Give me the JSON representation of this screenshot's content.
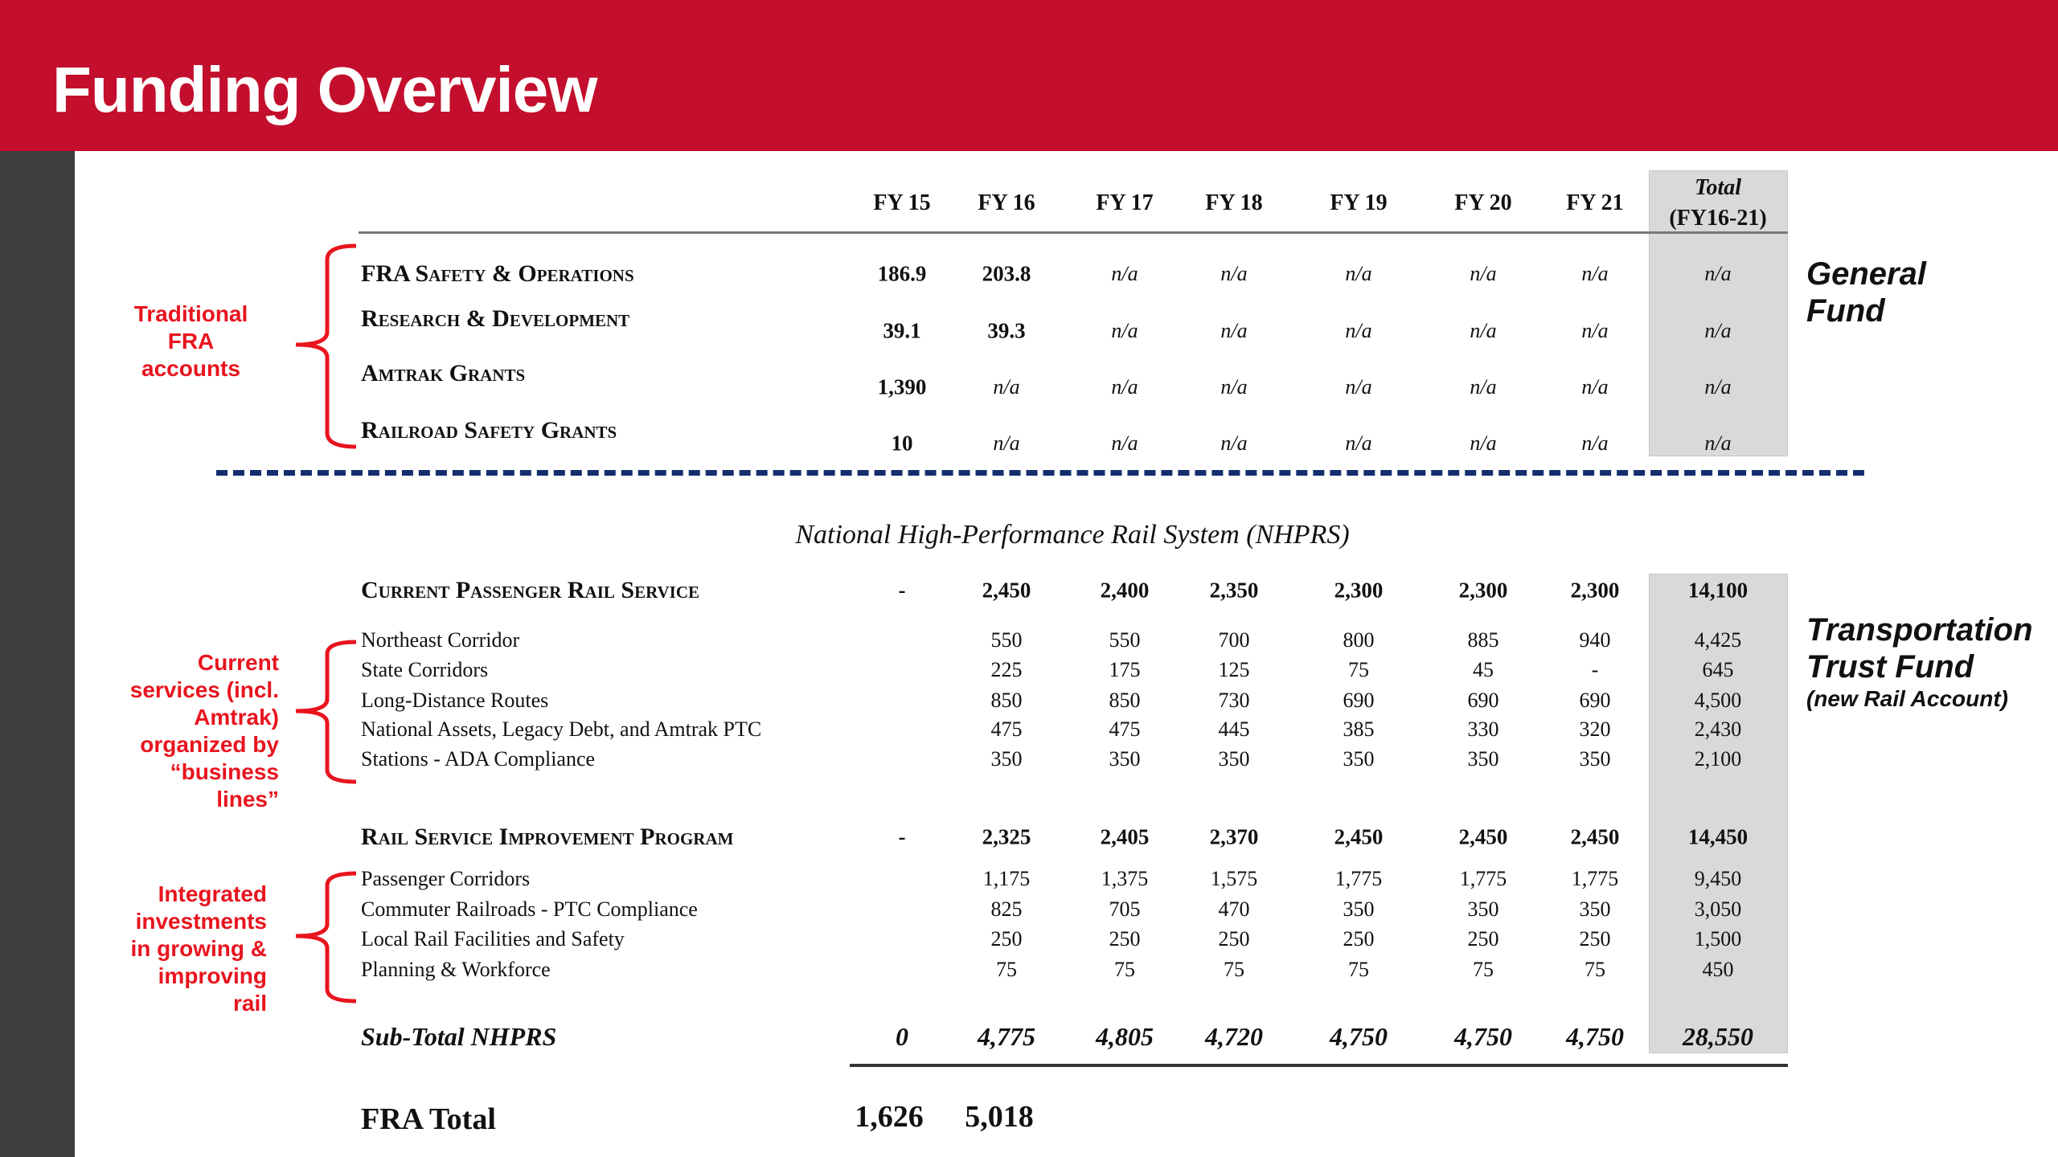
{
  "header": {
    "title": "Funding Overview",
    "background_color": "#c30f2d"
  },
  "columns": [
    "FY 15",
    "FY 16",
    "FY 17",
    "FY 18",
    "FY 19",
    "FY 20",
    "FY 21"
  ],
  "total_header": [
    "Total",
    "(FY16-21)"
  ],
  "general_fund": {
    "side_label": [
      "General",
      "Fund"
    ],
    "annotation": [
      "Traditional",
      "FRA",
      "accounts"
    ],
    "rows": [
      {
        "label": "FRA Safety & Operations",
        "values": [
          "186.9",
          "203.8",
          "n/a",
          "n/a",
          "n/a",
          "n/a",
          "n/a"
        ],
        "total": "n/a"
      },
      {
        "label": "Research & Development",
        "values": [
          "39.1",
          "39.3",
          "n/a",
          "n/a",
          "n/a",
          "n/a",
          "n/a"
        ],
        "total": "n/a"
      },
      {
        "label": "Amtrak Grants",
        "values": [
          "1,390",
          "n/a",
          "n/a",
          "n/a",
          "n/a",
          "n/a",
          "n/a"
        ],
        "total": "n/a"
      },
      {
        "label": "Railroad Safety Grants",
        "values": [
          "10",
          "n/a",
          "n/a",
          "n/a",
          "n/a",
          "n/a",
          "n/a"
        ],
        "total": "n/a"
      }
    ]
  },
  "nhprs": {
    "title": "National High-Performance Rail System (NHPRS)",
    "side_label": [
      "Transportation",
      "Trust Fund"
    ],
    "side_sublabel": "(new Rail Account)",
    "groups": [
      {
        "annotation": [
          "Current",
          "services (incl.",
          "Amtrak)",
          "organized by",
          "“business",
          "lines”"
        ],
        "header": {
          "label": "Current Passenger Rail Service",
          "values": [
            "-",
            "2,450",
            "2,400",
            "2,350",
            "2,300",
            "2,300",
            "2,300"
          ],
          "total": "14,100"
        },
        "items": [
          {
            "label": "Northeast Corridor",
            "values": [
              "",
              "550",
              "550",
              "700",
              "800",
              "885",
              "940"
            ],
            "total": "4,425"
          },
          {
            "label": "State Corridors",
            "values": [
              "",
              "225",
              "175",
              "125",
              "75",
              "45",
              "-"
            ],
            "total": "645"
          },
          {
            "label": "Long-Distance Routes",
            "values": [
              "",
              "850",
              "850",
              "730",
              "690",
              "690",
              "690"
            ],
            "total": "4,500"
          },
          {
            "label": "National Assets, Legacy Debt, and Amtrak PTC",
            "values": [
              "",
              "475",
              "475",
              "445",
              "385",
              "330",
              "320"
            ],
            "total": "2,430"
          },
          {
            "label": "Stations - ADA Compliance",
            "values": [
              "",
              "350",
              "350",
              "350",
              "350",
              "350",
              "350"
            ],
            "total": "2,100"
          }
        ]
      },
      {
        "annotation": [
          "Integrated",
          "investments",
          "in growing &",
          "improving",
          "rail"
        ],
        "header": {
          "label": "Rail Service Improvement Program",
          "values": [
            "-",
            "2,325",
            "2,405",
            "2,370",
            "2,450",
            "2,450",
            "2,450"
          ],
          "total": "14,450"
        },
        "items": [
          {
            "label": "Passenger Corridors",
            "values": [
              "",
              "1,175",
              "1,375",
              "1,575",
              "1,775",
              "1,775",
              "1,775"
            ],
            "total": "9,450"
          },
          {
            "label": "Commuter Railroads - PTC Compliance",
            "values": [
              "",
              "825",
              "705",
              "470",
              "350",
              "350",
              "350"
            ],
            "total": "3,050"
          },
          {
            "label": "Local Rail Facilities and Safety",
            "values": [
              "",
              "250",
              "250",
              "250",
              "250",
              "250",
              "250"
            ],
            "total": "1,500"
          },
          {
            "label": "Planning & Workforce",
            "values": [
              "",
              "75",
              "75",
              "75",
              "75",
              "75",
              "75"
            ],
            "total": "450"
          }
        ]
      }
    ],
    "subtotal": {
      "label": "Sub-Total NHPRS",
      "values": [
        "0",
        "4,775",
        "4,805",
        "4,720",
        "4,750",
        "4,750",
        "4,750"
      ],
      "total": "28,550"
    }
  },
  "fra_total": {
    "label": "FRA Total",
    "values": [
      "1,626",
      "5,018"
    ]
  },
  "colors": {
    "annotation": "#e8141e",
    "divider": "#142d6e",
    "total_column": "#d9d9d9"
  }
}
